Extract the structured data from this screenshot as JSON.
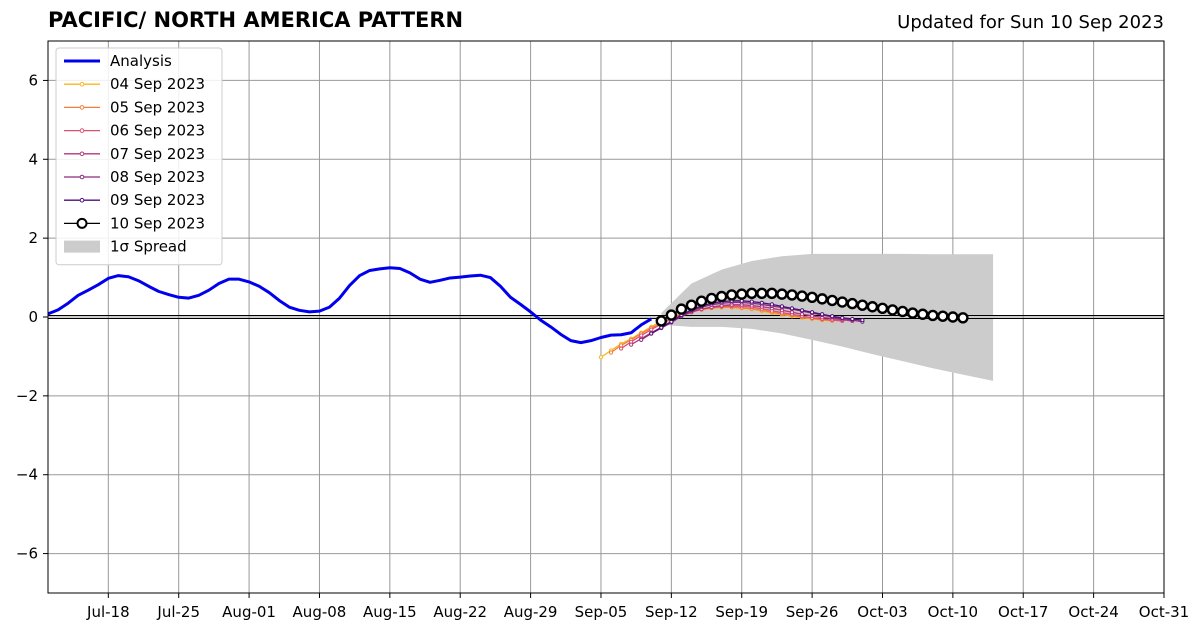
{
  "header": {
    "title": "PACIFIC/ NORTH AMERICA PATTERN",
    "updated": "Updated for Sun 10 Sep 2023"
  },
  "chart_data": {
    "type": "line",
    "x_tick_labels": [
      "Jul-18",
      "Jul-25",
      "Aug-01",
      "Aug-08",
      "Aug-15",
      "Aug-22",
      "Aug-29",
      "Sep-05",
      "Sep-12",
      "Sep-19",
      "Sep-26",
      "Oct-03",
      "Oct-10",
      "Oct-17",
      "Oct-24",
      "Oct-31"
    ],
    "y_tick_labels": [
      "−6",
      "−4",
      "−2",
      "0",
      "2",
      "4",
      "6"
    ],
    "y_ticks": [
      -6,
      -4,
      -2,
      0,
      2,
      4,
      6
    ],
    "xlim": [
      "2023-07-12",
      "2023-10-31"
    ],
    "ylim": [
      -7,
      7
    ],
    "grid": true,
    "legend_position": "top-left",
    "colors": {
      "analysis": "#0000ee",
      "spread": "#cccccc",
      "grid": "#999999"
    },
    "analysis": {
      "name": "Analysis",
      "start_date": "2023-07-12",
      "values": [
        0.08,
        0.18,
        0.35,
        0.55,
        0.68,
        0.82,
        0.98,
        1.05,
        1.02,
        0.92,
        0.78,
        0.65,
        0.57,
        0.5,
        0.48,
        0.55,
        0.68,
        0.85,
        0.96,
        0.96,
        0.89,
        0.78,
        0.62,
        0.42,
        0.25,
        0.17,
        0.13,
        0.15,
        0.25,
        0.48,
        0.8,
        1.05,
        1.18,
        1.22,
        1.25,
        1.23,
        1.12,
        0.96,
        0.88,
        0.93,
        0.99,
        1.01,
        1.04,
        1.06,
        1.0,
        0.78,
        0.5,
        0.32,
        0.13,
        -0.08,
        -0.25,
        -0.44,
        -0.6,
        -0.65,
        -0.6,
        -0.52,
        -0.46,
        -0.45,
        -0.4,
        -0.2,
        -0.05
      ]
    },
    "spread": {
      "name": "1σ Spread",
      "x": [
        "2023-09-11",
        "2023-09-14",
        "2023-09-17",
        "2023-09-20",
        "2023-09-23",
        "2023-09-26",
        "2023-09-29",
        "2023-10-02",
        "2023-10-05",
        "2023-10-08",
        "2023-10-11",
        "2023-10-14"
      ],
      "upper": [
        0.1,
        0.85,
        1.2,
        1.42,
        1.54,
        1.6,
        1.6,
        1.6,
        1.6,
        1.59,
        1.59,
        1.59
      ],
      "lower": [
        -0.2,
        -0.25,
        -0.25,
        -0.3,
        -0.42,
        -0.58,
        -0.75,
        -0.94,
        -1.12,
        -1.3,
        -1.46,
        -1.62
      ]
    },
    "series": [
      {
        "name": "04 Sep 2023",
        "color": "#fbb61a",
        "start": "2023-09-05",
        "values": [
          -1.02,
          -0.85,
          -0.68,
          -0.55,
          -0.4,
          -0.25,
          -0.1,
          0.0,
          0.08,
          0.14,
          0.18,
          0.22,
          0.24,
          0.24,
          0.22,
          0.2,
          0.15,
          0.1,
          0.06,
          0.02,
          -0.02,
          -0.05,
          -0.08,
          -0.1
        ]
      },
      {
        "name": "05 Sep 2023",
        "color": "#f37e3b",
        "start": "2023-09-06",
        "values": [
          -0.9,
          -0.72,
          -0.58,
          -0.42,
          -0.28,
          -0.15,
          -0.02,
          0.08,
          0.14,
          0.19,
          0.23,
          0.25,
          0.25,
          0.23,
          0.21,
          0.17,
          0.12,
          0.08,
          0.04,
          0.0,
          -0.04,
          -0.07,
          -0.09
        ]
      },
      {
        "name": "06 Sep 2023",
        "color": "#dc5170",
        "start": "2023-09-07",
        "values": [
          -0.8,
          -0.63,
          -0.47,
          -0.32,
          -0.18,
          -0.05,
          0.06,
          0.14,
          0.2,
          0.24,
          0.27,
          0.28,
          0.27,
          0.25,
          0.21,
          0.16,
          0.11,
          0.07,
          0.02,
          -0.02,
          -0.05,
          -0.08,
          -0.1
        ]
      },
      {
        "name": "07 Sep 2023",
        "color": "#b5367a",
        "start": "2023-09-08",
        "values": [
          -0.7,
          -0.55,
          -0.4,
          -0.26,
          -0.12,
          0.02,
          0.12,
          0.2,
          0.25,
          0.29,
          0.31,
          0.31,
          0.29,
          0.26,
          0.22,
          0.17,
          0.12,
          0.07,
          0.03,
          -0.01,
          -0.04,
          -0.07,
          -0.1
        ]
      },
      {
        "name": "08 Sep 2023",
        "color": "#8c2981",
        "start": "2023-09-09",
        "values": [
          -0.58,
          -0.42,
          -0.28,
          -0.14,
          0.02,
          0.15,
          0.25,
          0.31,
          0.35,
          0.37,
          0.37,
          0.35,
          0.32,
          0.28,
          0.24,
          0.2,
          0.15,
          0.1,
          0.05,
          0.0,
          -0.04,
          -0.08,
          -0.12
        ]
      },
      {
        "name": "09 Sep 2023",
        "color": "#4e0e7a",
        "start": "2023-09-10",
        "values": [
          -0.42,
          -0.27,
          -0.12,
          0.05,
          0.18,
          0.28,
          0.35,
          0.39,
          0.41,
          0.41,
          0.39,
          0.36,
          0.32,
          0.27,
          0.22,
          0.17,
          0.12,
          0.07,
          0.02,
          -0.02,
          -0.05,
          -0.08
        ]
      },
      {
        "name": "10 Sep 2023",
        "color": "#000000",
        "start": "2023-09-11",
        "values": [
          -0.1,
          0.05,
          0.2,
          0.3,
          0.4,
          0.47,
          0.52,
          0.56,
          0.58,
          0.6,
          0.6,
          0.6,
          0.58,
          0.56,
          0.53,
          0.5,
          0.46,
          0.42,
          0.38,
          0.34,
          0.3,
          0.26,
          0.22,
          0.18,
          0.14,
          0.1,
          0.07,
          0.04,
          0.02,
          0.0,
          -0.02
        ]
      }
    ]
  }
}
